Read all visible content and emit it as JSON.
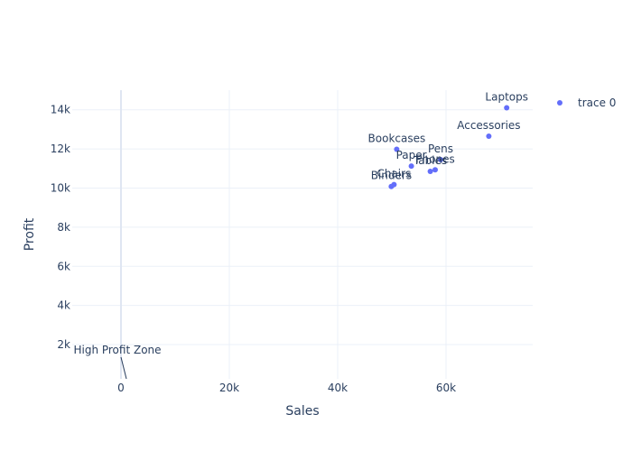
{
  "chart_data": {
    "type": "scatter",
    "title": "",
    "xlabel": "Sales",
    "ylabel": "Profit",
    "xlim": [
      -9000,
      76000
    ],
    "ylim": [
      250,
      15000
    ],
    "x_ticks": [
      0,
      20000,
      40000,
      60000
    ],
    "x_tick_labels": [
      "0",
      "20k",
      "40k",
      "60k"
    ],
    "y_ticks": [
      2000,
      4000,
      6000,
      8000,
      10000,
      12000,
      14000
    ],
    "y_tick_labels": [
      "2k",
      "4k",
      "6k",
      "8k",
      "10k",
      "12k",
      "14k"
    ],
    "grid": true,
    "legend_position": "top-right",
    "series": [
      {
        "name": "trace 0",
        "color": "#636efa",
        "points": [
          {
            "label": "Laptops",
            "x": 71200,
            "y": 14100
          },
          {
            "label": "Accessories",
            "x": 67900,
            "y": 12650
          },
          {
            "label": "Bookcases",
            "x": 50900,
            "y": 11980
          },
          {
            "label": "Pens",
            "x": 59000,
            "y": 11450
          },
          {
            "label": "Paper",
            "x": 53600,
            "y": 11120
          },
          {
            "label": "Phones",
            "x": 58000,
            "y": 10930
          },
          {
            "label": "Tables",
            "x": 57100,
            "y": 10850
          },
          {
            "label": "Chairs",
            "x": 50400,
            "y": 10180
          },
          {
            "label": "Binders",
            "x": 49900,
            "y": 10080
          }
        ]
      }
    ],
    "annotations": [
      {
        "text": "High Profit Zone",
        "x": 1000,
        "y": 250
      }
    ]
  }
}
